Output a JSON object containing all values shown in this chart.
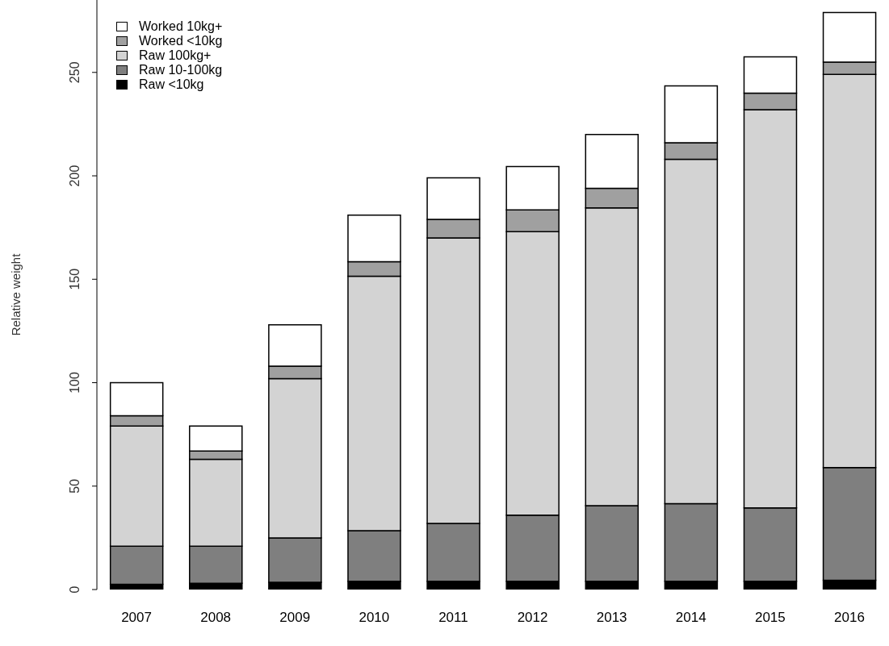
{
  "chart_data": {
    "type": "bar",
    "stacked": true,
    "ylabel": "Relative weight",
    "categories": [
      "2007",
      "2008",
      "2009",
      "2010",
      "2011",
      "2012",
      "2013",
      "2014",
      "2015",
      "2016"
    ],
    "series": [
      {
        "name": "Raw <10kg",
        "color": "#000000",
        "values": [
          2.5,
          3,
          3.5,
          4,
          4,
          4,
          4,
          4,
          4,
          4.5
        ]
      },
      {
        "name": "Raw 10-100kg",
        "color": "#7f7f7f",
        "values": [
          18.5,
          18,
          21.5,
          24.5,
          28,
          32,
          36.5,
          37.5,
          35.5,
          54.5
        ]
      },
      {
        "name": "Raw 100kg+",
        "color": "#d3d3d3",
        "values": [
          58,
          42,
          77,
          123,
          138,
          137,
          144,
          166.5,
          192.5,
          190
        ]
      },
      {
        "name": "Worked <10kg",
        "color": "#a0a0a0",
        "values": [
          5,
          4,
          6,
          7,
          9,
          10.5,
          9.5,
          8,
          8,
          6
        ]
      },
      {
        "name": "Worked 10kg+",
        "color": "#ffffff",
        "values": [
          16,
          12,
          20,
          22.5,
          20,
          21,
          26,
          27.5,
          17.5,
          24
        ]
      }
    ],
    "ylim": [
      0,
      285
    ],
    "yticks": [
      0,
      50,
      100,
      150,
      200,
      250
    ],
    "grid": false,
    "legend": "top left"
  }
}
